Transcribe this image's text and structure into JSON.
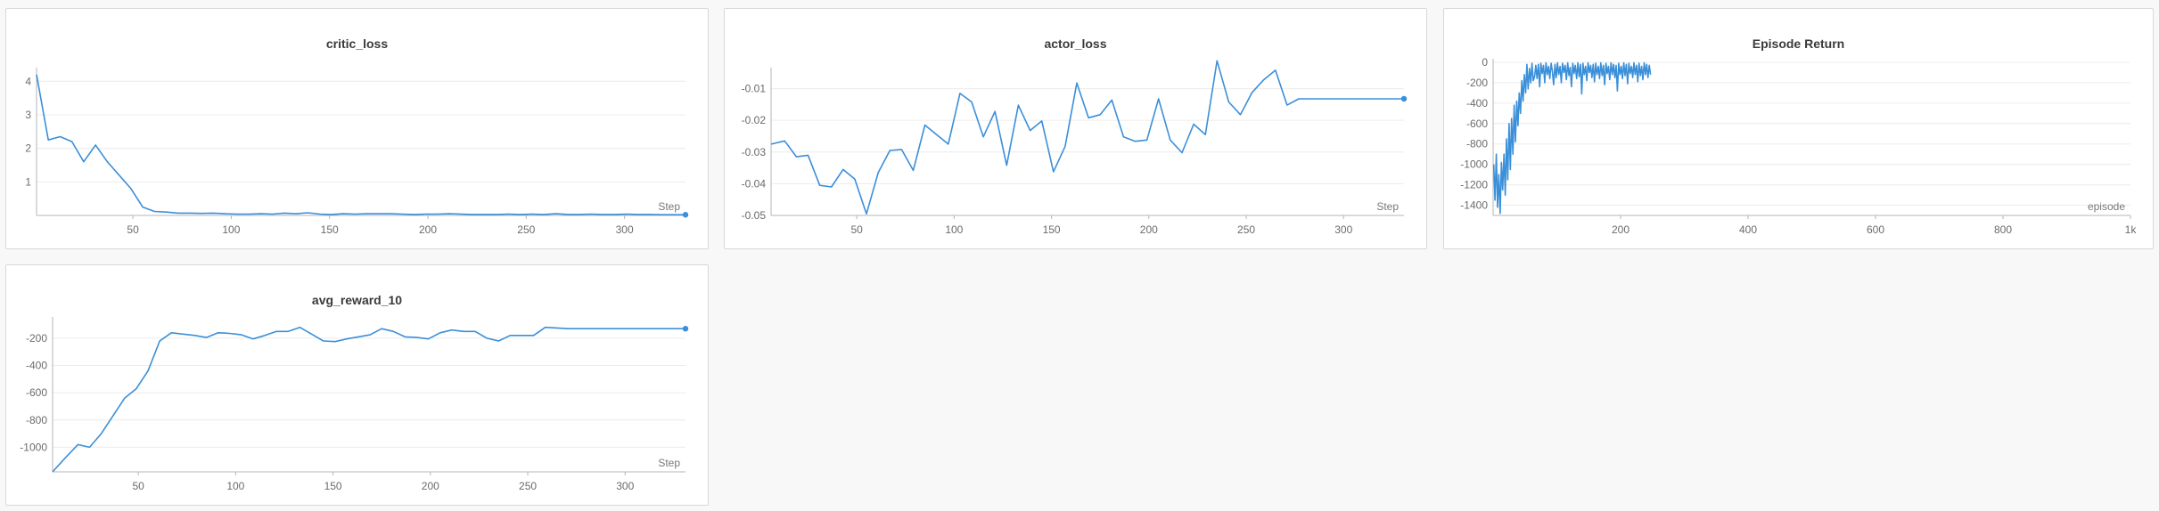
{
  "colors": {
    "series": "#3a8fd9",
    "grid": "#ececec",
    "axis": "#b5b5b5"
  },
  "chart_data": [
    {
      "id": "critic",
      "type": "line",
      "title": "critic_loss",
      "xlabel": "Step",
      "ylabel": "",
      "xlim": [
        1,
        331
      ],
      "ylim": [
        0,
        4.3
      ],
      "xticks": [
        50,
        100,
        150,
        200,
        250,
        300
      ],
      "yticks": [
        1,
        2,
        3,
        4
      ],
      "ytick_labels": [
        "1",
        "2",
        "3",
        "4"
      ],
      "grid": true,
      "end_marker": true,
      "x": [
        1,
        7,
        13,
        19,
        25,
        31,
        37,
        43,
        49,
        55,
        61,
        67,
        73,
        79,
        85,
        91,
        97,
        103,
        109,
        115,
        121,
        127,
        133,
        139,
        145,
        151,
        157,
        163,
        169,
        175,
        181,
        187,
        193,
        199,
        205,
        211,
        217,
        223,
        229,
        235,
        241,
        247,
        253,
        259,
        265,
        271,
        277,
        283,
        289,
        295,
        301,
        307,
        313,
        319,
        325,
        331
      ],
      "y": [
        4.2,
        2.25,
        2.35,
        2.2,
        1.6,
        2.1,
        1.6,
        1.2,
        0.8,
        0.25,
        0.12,
        0.1,
        0.07,
        0.07,
        0.06,
        0.07,
        0.05,
        0.04,
        0.04,
        0.05,
        0.04,
        0.07,
        0.05,
        0.08,
        0.04,
        0.03,
        0.05,
        0.04,
        0.05,
        0.05,
        0.05,
        0.04,
        0.03,
        0.04,
        0.04,
        0.05,
        0.04,
        0.03,
        0.03,
        0.03,
        0.04,
        0.03,
        0.04,
        0.03,
        0.05,
        0.03,
        0.03,
        0.04,
        0.03,
        0.03,
        0.04,
        0.03,
        0.03,
        0.02,
        0.02,
        0.02
      ]
    },
    {
      "id": "actor",
      "type": "line",
      "title": "actor_loss",
      "xlabel": "Step",
      "ylabel": "",
      "xlim": [
        6,
        331
      ],
      "ylim": [
        -0.05,
        -0.0045
      ],
      "xticks": [
        50,
        100,
        150,
        200,
        250,
        300
      ],
      "yticks": [
        -0.05,
        -0.04,
        -0.03,
        -0.02,
        -0.01
      ],
      "ytick_labels": [
        "-0.05",
        "-0.04",
        "-0.03",
        "-0.02",
        "-0.01"
      ],
      "grid": true,
      "end_marker": true,
      "x": [
        6,
        13,
        19,
        25,
        31,
        37,
        43,
        49,
        55,
        61,
        67,
        73,
        79,
        85,
        91,
        97,
        103,
        109,
        115,
        121,
        127,
        133,
        139,
        145,
        151,
        157,
        163,
        169,
        175,
        181,
        187,
        193,
        199,
        205,
        211,
        217,
        223,
        229,
        235,
        241,
        247,
        253,
        259,
        265,
        271,
        277,
        283,
        289,
        295,
        301,
        307,
        313,
        319,
        325,
        331
      ],
      "y": [
        -0.0275,
        -0.0265,
        -0.0315,
        -0.031,
        -0.0405,
        -0.041,
        -0.0355,
        -0.0385,
        -0.0495,
        -0.0365,
        -0.0295,
        -0.0292,
        -0.0358,
        -0.0215,
        -0.0245,
        -0.0275,
        -0.0115,
        -0.0142,
        -0.0252,
        -0.0172,
        -0.0342,
        -0.0152,
        -0.0232,
        -0.0202,
        -0.0362,
        -0.0282,
        -0.0082,
        -0.0192,
        -0.0182,
        -0.0136,
        -0.0252,
        -0.0266,
        -0.0262,
        -0.0132,
        -0.0262,
        -0.0302,
        -0.0212,
        -0.0245,
        -0.0012,
        -0.0142,
        -0.0182,
        -0.0112,
        -0.0072,
        -0.0042,
        -0.0152,
        -0.0132,
        -0.0132,
        -0.0132,
        -0.0132,
        -0.0132,
        -0.0132,
        -0.0132,
        -0.0132,
        -0.0132,
        -0.0132
      ]
    },
    {
      "id": "return",
      "type": "line",
      "title": "Episode Return",
      "xlabel": "episode",
      "ylabel": "",
      "xlim": [
        0,
        1000
      ],
      "ylim": [
        -1500,
        0
      ],
      "xticks": [
        200,
        400,
        600,
        800,
        1000
      ],
      "xtick_labels": [
        "200",
        "400",
        "600",
        "800",
        "1k"
      ],
      "yticks": [
        0,
        -200,
        -400,
        -600,
        -800,
        -1000,
        -1200,
        -1400
      ],
      "ytick_labels": [
        "0",
        "-200",
        "-400",
        "-600",
        "-800",
        "-1000",
        "-1200",
        "-1400"
      ],
      "grid": true,
      "end_marker": false,
      "x": [
        1,
        3,
        5,
        7,
        9,
        11,
        13,
        15,
        17,
        19,
        21,
        23,
        25,
        27,
        29,
        31,
        33,
        35,
        37,
        39,
        41,
        43,
        45,
        47,
        49,
        51,
        53,
        55,
        57,
        59,
        61,
        63,
        65,
        67,
        69,
        71,
        73,
        75,
        77,
        79,
        81,
        83,
        85,
        87,
        89,
        91,
        93,
        95,
        97,
        99,
        101,
        103,
        105,
        107,
        109,
        111,
        113,
        115,
        117,
        119,
        121,
        123,
        125,
        127,
        129,
        131,
        133,
        135,
        137,
        139,
        141,
        143,
        145,
        147,
        149,
        151,
        153,
        155,
        157,
        159,
        161,
        163,
        165,
        167,
        169,
        171,
        173,
        175,
        177,
        179,
        181,
        183,
        185,
        187,
        189,
        191,
        193,
        195,
        197,
        199,
        201,
        203,
        205,
        207,
        209,
        211,
        213,
        215,
        217,
        219,
        221,
        223,
        225,
        227,
        229,
        231,
        233,
        235,
        237,
        239,
        241,
        243,
        245,
        247
      ],
      "y": [
        -1000,
        -1350,
        -900,
        -1420,
        -1100,
        -1480,
        -980,
        -1250,
        -900,
        -1300,
        -750,
        -1150,
        -600,
        -1050,
        -550,
        -900,
        -420,
        -780,
        -380,
        -620,
        -300,
        -500,
        -180,
        -380,
        -120,
        -300,
        -20,
        -260,
        -60,
        -200,
        -10,
        -180,
        -140,
        -30,
        -160,
        -20,
        -240,
        -10,
        -110,
        -30,
        -200,
        -5,
        -120,
        -40,
        -160,
        -10,
        -90,
        -220,
        -20,
        -150,
        -5,
        -120,
        -40,
        -200,
        -10,
        -100,
        -30,
        -170,
        -5,
        -130,
        -50,
        -240,
        -10,
        -110,
        -30,
        -160,
        -5,
        -140,
        -20,
        -310,
        -10,
        -120,
        -40,
        -180,
        -5,
        -100,
        -30,
        -150,
        -20,
        -190,
        -10,
        -120,
        -40,
        -160,
        -5,
        -130,
        -30,
        -220,
        -10,
        -110,
        -40,
        -170,
        -5,
        -120,
        -20,
        -150,
        -30,
        -280,
        -10,
        -120,
        -40,
        -160,
        -5,
        -130,
        -20,
        -210,
        -10,
        -110,
        -40,
        -150,
        -5,
        -120,
        -30,
        -190,
        -10,
        -130,
        -40,
        -170,
        -5,
        -120,
        -20,
        -150,
        -30,
        -120
      ]
    },
    {
      "id": "avg",
      "type": "line",
      "title": "avg_reward_10",
      "xlabel": "Step",
      "ylabel": "",
      "xlim": [
        6,
        331
      ],
      "ylim": [
        -1180,
        -70
      ],
      "xticks": [
        50,
        100,
        150,
        200,
        250,
        300
      ],
      "yticks": [
        -200,
        -400,
        -600,
        -800,
        -1000
      ],
      "ytick_labels": [
        "-200",
        "-400",
        "-600",
        "-800",
        "-1000"
      ],
      "grid": true,
      "end_marker": true,
      "x": [
        6,
        13,
        19,
        25,
        31,
        37,
        43,
        49,
        55,
        61,
        67,
        73,
        79,
        85,
        91,
        97,
        103,
        109,
        115,
        121,
        127,
        133,
        139,
        145,
        151,
        157,
        163,
        169,
        175,
        181,
        187,
        193,
        199,
        205,
        211,
        217,
        223,
        229,
        235,
        241,
        247,
        253,
        259,
        265,
        271,
        277,
        283,
        289,
        295,
        301,
        307,
        313,
        319,
        325,
        331
      ],
      "y": [
        -1180,
        -1070,
        -980,
        -1000,
        -900,
        -770,
        -640,
        -570,
        -440,
        -220,
        -160,
        -170,
        -180,
        -195,
        -160,
        -165,
        -175,
        -205,
        -180,
        -150,
        -150,
        -120,
        -170,
        -220,
        -225,
        -205,
        -190,
        -175,
        -130,
        -150,
        -190,
        -195,
        -205,
        -160,
        -140,
        -150,
        -150,
        -200,
        -220,
        -180,
        -180,
        -180,
        -120,
        -125,
        -130,
        -130,
        -130,
        -130,
        -130,
        -130,
        -130,
        -130,
        -130,
        -130,
        -130
      ]
    }
  ]
}
